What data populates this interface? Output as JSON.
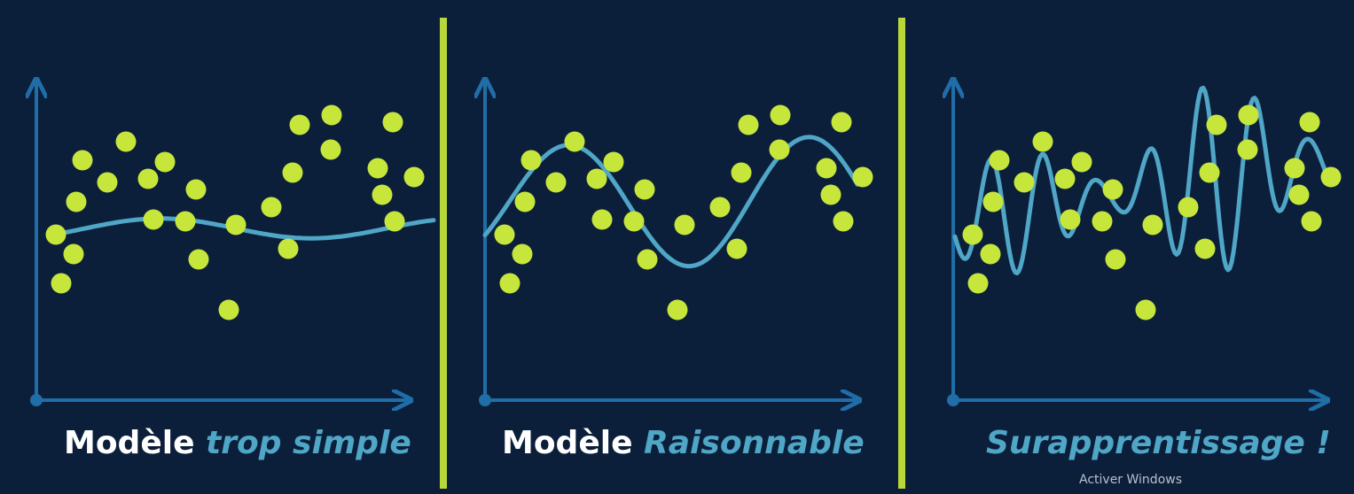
{
  "colors": {
    "background": "#0c1f3a",
    "divider": "#b8d83a",
    "axis": "#1f6ea8",
    "curve": "#4fa6c6",
    "point": "#c6e63c",
    "caption_text": "#ffffff",
    "caption_accent": "#4fa6c6"
  },
  "panels": [
    {
      "caption_plain": "Modèle ",
      "caption_accent": "trop simple",
      "model": "underfit"
    },
    {
      "caption_plain": "Modèle ",
      "caption_accent": "Raisonnable",
      "model": "reasonable"
    },
    {
      "caption_plain": "",
      "caption_accent": "Surapprentissage !",
      "model": "overfit"
    }
  ],
  "watermark": "Activer Windows"
}
